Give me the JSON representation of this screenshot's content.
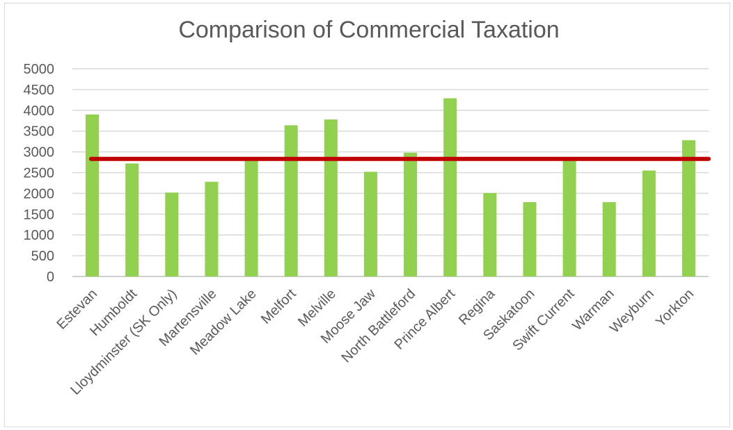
{
  "chart_data": {
    "type": "bar",
    "title": "Comparison of Commercial Taxation",
    "categories": [
      "Estevan",
      "Humboldt",
      "Lloydminster (SK Only)",
      "Martensville",
      "Meadow Lake",
      "Melfort",
      "Melville",
      "Moose Jaw",
      "North Battleford",
      "Prince Albert",
      "Regina",
      "Saskatoon",
      "Swift Current",
      "Warman",
      "Weyburn",
      "Yorkton"
    ],
    "values": [
      3900,
      2720,
      2020,
      2280,
      2830,
      3640,
      3780,
      2520,
      2980,
      4290,
      2010,
      1790,
      2830,
      1790,
      2550,
      3280
    ],
    "reference_line": 2830,
    "ylim": [
      0,
      5000
    ],
    "yticks": [
      "0",
      "500",
      "1000",
      "1500",
      "2000",
      "2500",
      "3000",
      "3500",
      "4000",
      "4500",
      "5000"
    ],
    "grid": true,
    "legend": "none",
    "colors": {
      "bar": "#92d050",
      "reference_line": "#c00000"
    }
  }
}
